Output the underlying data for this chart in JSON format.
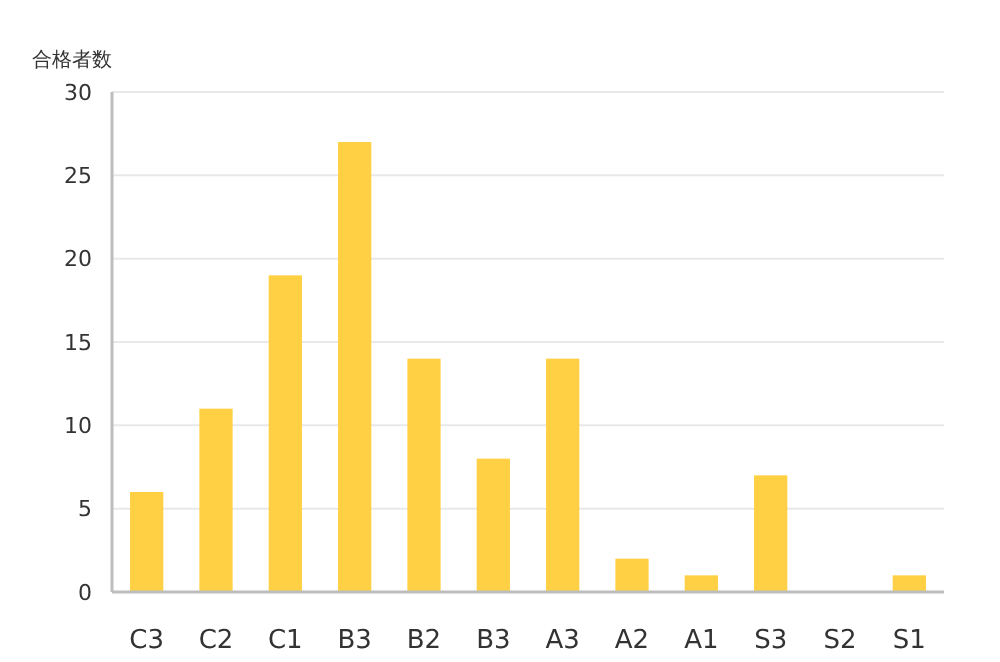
{
  "chart_data": {
    "type": "bar",
    "ylabel": "合格者数",
    "categories": [
      "C3",
      "C2",
      "C1",
      "B3",
      "B2",
      "B3",
      "A3",
      "A2",
      "A1",
      "S3",
      "S2",
      "S1"
    ],
    "values": [
      6,
      11,
      19,
      27,
      14,
      8,
      14,
      2,
      1,
      7,
      0,
      1
    ],
    "color": "#ffd044",
    "ylim": [
      0,
      30
    ],
    "yticks": [
      0,
      5,
      10,
      15,
      20,
      25,
      30
    ],
    "grid": "y"
  }
}
